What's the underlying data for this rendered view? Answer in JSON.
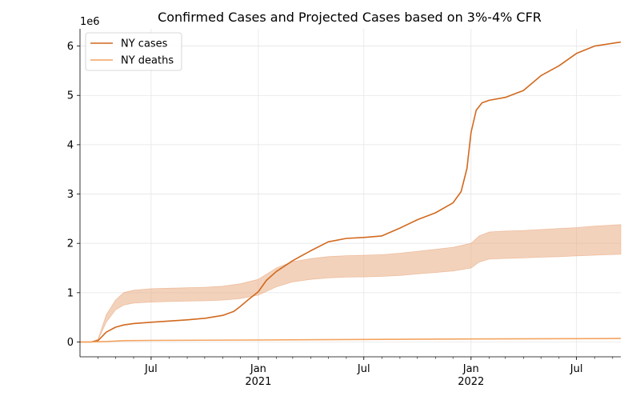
{
  "chart_data": {
    "type": "line",
    "title": "Confirmed Cases and Projected Cases based on 3%-4% CFR",
    "xlabel": "",
    "ylabel": "",
    "y_multiplier_label": "1e6",
    "y_unit": 1000000,
    "x_range": [
      "2020-03-01",
      "2022-09-15"
    ],
    "ylim": [
      -300000,
      6350000
    ],
    "y_ticks": [
      0,
      1000000,
      2000000,
      3000000,
      4000000,
      5000000,
      6000000
    ],
    "y_tick_labels": [
      "0",
      "1",
      "2",
      "3",
      "4",
      "5",
      "6"
    ],
    "x_ticks": [
      {
        "date": "2020-07-01",
        "label": "Jul",
        "sublabel": ""
      },
      {
        "date": "2021-01-01",
        "label": "Jan",
        "sublabel": "2021"
      },
      {
        "date": "2021-07-01",
        "label": "Jul",
        "sublabel": ""
      },
      {
        "date": "2022-01-01",
        "label": "Jan",
        "sublabel": "2022"
      },
      {
        "date": "2022-07-01",
        "label": "Jul",
        "sublabel": ""
      }
    ],
    "grid": true,
    "legend_position": "top-left",
    "colors": {
      "cases": "#d2691e",
      "deaths": "#f4a460",
      "band_fill": "#e8a57a"
    },
    "series": [
      {
        "name": "NY cases",
        "x": [
          "2020-03-01",
          "2020-03-20",
          "2020-04-01",
          "2020-04-15",
          "2020-05-01",
          "2020-05-15",
          "2020-06-01",
          "2020-07-01",
          "2020-08-01",
          "2020-09-01",
          "2020-10-01",
          "2020-11-01",
          "2020-11-20",
          "2020-12-01",
          "2020-12-15",
          "2021-01-01",
          "2021-01-15",
          "2021-02-01",
          "2021-03-01",
          "2021-04-01",
          "2021-05-01",
          "2021-06-01",
          "2021-07-01",
          "2021-08-01",
          "2021-09-01",
          "2021-10-01",
          "2021-11-01",
          "2021-12-01",
          "2021-12-15",
          "2021-12-25",
          "2022-01-01",
          "2022-01-10",
          "2022-01-20",
          "2022-02-01",
          "2022-03-01",
          "2022-04-01",
          "2022-05-01",
          "2022-06-01",
          "2022-07-01",
          "2022-08-01",
          "2022-09-15"
        ],
        "values": [
          0,
          0,
          30000,
          200000,
          300000,
          345000,
          375000,
          400000,
          425000,
          450000,
          480000,
          540000,
          620000,
          720000,
          860000,
          1020000,
          1250000,
          1430000,
          1650000,
          1850000,
          2030000,
          2100000,
          2120000,
          2150000,
          2310000,
          2480000,
          2620000,
          2820000,
          3050000,
          3520000,
          4250000,
          4700000,
          4850000,
          4900000,
          4960000,
          5100000,
          5400000,
          5600000,
          5850000,
          6000000,
          6080000
        ]
      },
      {
        "name": "NY deaths",
        "x": [
          "2020-03-01",
          "2020-03-20",
          "2020-04-15",
          "2020-05-15",
          "2020-07-01",
          "2021-01-01",
          "2021-07-01",
          "2022-01-01",
          "2022-09-15"
        ],
        "values": [
          0,
          0,
          10000,
          28000,
          32000,
          40000,
          52000,
          62000,
          72000
        ]
      }
    ],
    "projection_band": {
      "x": [
        "2020-03-01",
        "2020-03-20",
        "2020-04-01",
        "2020-04-15",
        "2020-05-01",
        "2020-05-15",
        "2020-06-01",
        "2020-07-01",
        "2020-08-01",
        "2020-09-01",
        "2020-10-01",
        "2020-11-01",
        "2020-12-01",
        "2021-01-01",
        "2021-02-01",
        "2021-03-01",
        "2021-04-01",
        "2021-05-01",
        "2021-06-01",
        "2021-07-01",
        "2021-08-01",
        "2021-09-01",
        "2021-10-01",
        "2021-11-01",
        "2021-12-01",
        "2022-01-01",
        "2022-01-15",
        "2022-02-01",
        "2022-03-01",
        "2022-04-01",
        "2022-05-01",
        "2022-06-01",
        "2022-07-01",
        "2022-08-01",
        "2022-09-15"
      ],
      "lower": [
        0,
        0,
        40000,
        400000,
        650000,
        750000,
        790000,
        810000,
        820000,
        830000,
        835000,
        850000,
        880000,
        950000,
        1120000,
        1220000,
        1270000,
        1300000,
        1315000,
        1320000,
        1330000,
        1350000,
        1380000,
        1410000,
        1440000,
        1500000,
        1620000,
        1680000,
        1695000,
        1705000,
        1720000,
        1730000,
        1745000,
        1760000,
        1780000
      ],
      "upper": [
        0,
        0,
        60000,
        550000,
        850000,
        1000000,
        1050000,
        1080000,
        1090000,
        1100000,
        1110000,
        1130000,
        1180000,
        1270000,
        1500000,
        1630000,
        1690000,
        1730000,
        1750000,
        1760000,
        1770000,
        1800000,
        1840000,
        1880000,
        1920000,
        2000000,
        2150000,
        2230000,
        2250000,
        2260000,
        2280000,
        2300000,
        2320000,
        2350000,
        2380000
      ]
    }
  }
}
